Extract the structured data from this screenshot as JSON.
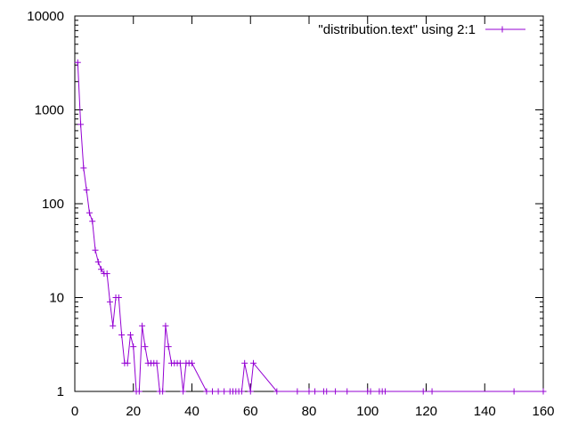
{
  "chart_data": {
    "type": "line",
    "title": "",
    "xlabel": "",
    "ylabel": "",
    "xlim": [
      0,
      160
    ],
    "ylim": [
      1,
      10000
    ],
    "y_scale": "log",
    "grid": false,
    "legend_position": "top-right",
    "x_ticks": [
      "0",
      "20",
      "40",
      "60",
      "80",
      "100",
      "120",
      "140",
      "160"
    ],
    "y_ticks": [
      "1",
      "10",
      "100",
      "1000",
      "10000"
    ],
    "series": [
      {
        "name": "\"distribution.text\" using 2:1",
        "color": "#9400d3",
        "marker": "plus",
        "x": [
          1,
          2,
          3,
          4,
          5,
          6,
          7,
          8,
          9,
          10,
          11,
          12,
          13,
          14,
          15,
          16,
          17,
          18,
          19,
          20,
          21,
          22,
          23,
          24,
          25,
          26,
          27,
          28,
          29,
          30,
          31,
          32,
          33,
          34,
          35,
          36,
          37,
          38,
          39,
          40,
          45,
          47,
          49,
          51,
          53,
          54,
          55,
          56,
          57,
          58,
          60,
          61,
          69,
          76,
          80,
          82,
          85,
          86,
          89,
          93,
          100,
          101,
          104,
          105,
          106,
          119,
          122,
          150,
          160
        ],
        "y": [
          3200,
          700,
          240,
          140,
          80,
          65,
          32,
          24,
          20,
          18,
          18,
          9,
          5,
          10,
          10,
          4,
          2,
          2,
          4,
          3,
          1,
          1,
          5,
          3,
          2,
          2,
          2,
          2,
          1,
          1,
          5,
          3,
          2,
          2,
          2,
          2,
          1,
          2,
          2,
          2,
          1,
          1,
          1,
          1,
          1,
          1,
          1,
          1,
          1,
          2,
          1,
          2,
          1,
          1,
          1,
          1,
          1,
          1,
          1,
          1,
          1,
          1,
          1,
          1,
          1,
          1,
          1,
          1,
          1
        ]
      }
    ]
  }
}
